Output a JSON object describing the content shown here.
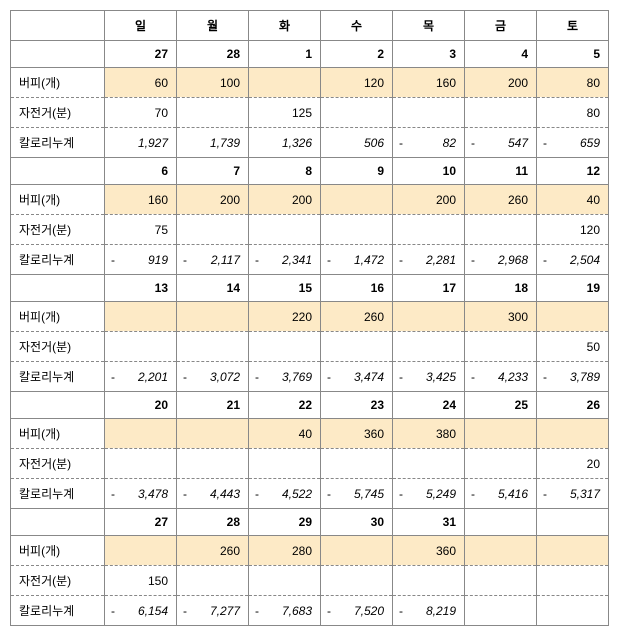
{
  "weekdays": [
    "일",
    "월",
    "화",
    "수",
    "목",
    "금",
    "토"
  ],
  "row_labels": {
    "burpee": "버피(개)",
    "bike": "자전거(분)",
    "cal": "칼로리누계"
  },
  "weeks": [
    {
      "dates": [
        "27",
        "28",
        "1",
        "2",
        "3",
        "4",
        "5"
      ],
      "burpee": [
        "60",
        "100",
        "",
        "120",
        "160",
        "200",
        "80"
      ],
      "bike": [
        "70",
        "",
        "125",
        "",
        "",
        "",
        "80"
      ],
      "cal_neg": [
        false,
        false,
        false,
        false,
        true,
        true,
        true
      ],
      "cal": [
        "1,927",
        "1,739",
        "1,326",
        "506",
        "82",
        "547",
        "659"
      ]
    },
    {
      "dates": [
        "6",
        "7",
        "8",
        "9",
        "10",
        "11",
        "12"
      ],
      "burpee": [
        "160",
        "200",
        "200",
        "",
        "200",
        "260",
        "40"
      ],
      "bike": [
        "75",
        "",
        "",
        "",
        "",
        "",
        "120"
      ],
      "cal_neg": [
        true,
        true,
        true,
        true,
        true,
        true,
        true
      ],
      "cal": [
        "919",
        "2,117",
        "2,341",
        "1,472",
        "2,281",
        "2,968",
        "2,504"
      ]
    },
    {
      "dates": [
        "13",
        "14",
        "15",
        "16",
        "17",
        "18",
        "19"
      ],
      "burpee": [
        "",
        "",
        "220",
        "260",
        "",
        "300",
        ""
      ],
      "bike": [
        "",
        "",
        "",
        "",
        "",
        "",
        "50"
      ],
      "cal_neg": [
        true,
        true,
        true,
        true,
        true,
        true,
        true
      ],
      "cal": [
        "2,201",
        "3,072",
        "3,769",
        "3,474",
        "3,425",
        "4,233",
        "3,789"
      ]
    },
    {
      "dates": [
        "20",
        "21",
        "22",
        "23",
        "24",
        "25",
        "26"
      ],
      "burpee": [
        "",
        "",
        "40",
        "360",
        "380",
        "",
        ""
      ],
      "bike": [
        "",
        "",
        "",
        "",
        "",
        "",
        "20"
      ],
      "cal_neg": [
        true,
        true,
        true,
        true,
        true,
        true,
        true
      ],
      "cal": [
        "3,478",
        "4,443",
        "4,522",
        "5,745",
        "5,249",
        "5,416",
        "5,317"
      ]
    },
    {
      "dates": [
        "27",
        "28",
        "29",
        "30",
        "31",
        "",
        ""
      ],
      "burpee": [
        "",
        "260",
        "280",
        "",
        "360",
        "",
        ""
      ],
      "bike": [
        "150",
        "",
        "",
        "",
        "",
        "",
        ""
      ],
      "cal_neg": [
        true,
        true,
        true,
        true,
        true,
        false,
        false
      ],
      "cal": [
        "6,154",
        "7,277",
        "7,683",
        "7,520",
        "8,219",
        "",
        ""
      ]
    }
  ],
  "colors": {
    "highlight": "#fdeac6",
    "border": "#888888",
    "background": "#ffffff"
  }
}
